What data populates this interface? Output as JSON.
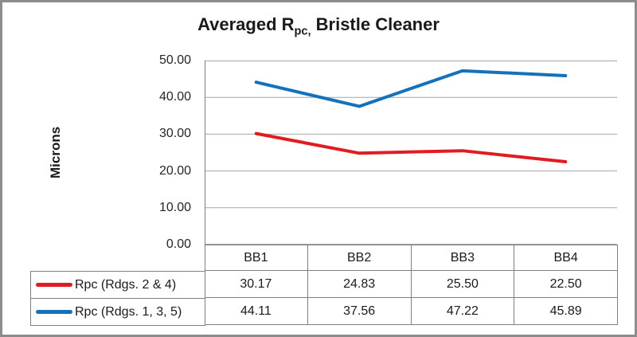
{
  "frame": {
    "background": "#ffffff",
    "border_color": "#8c8c8c"
  },
  "chart_data": {
    "type": "line",
    "title": {
      "prefix": "Averaged R",
      "subscript": "pc,",
      "suffix": " Bristle Cleaner",
      "full_text": "Averaged Rpc, Bristle Cleaner"
    },
    "xlabel": "",
    "ylabel": "Microns",
    "ylim": [
      0,
      50
    ],
    "ytick_interval": 10,
    "ytick_labels": [
      "50.00",
      "40.00",
      "30.00",
      "20.00",
      "10.00",
      "0.00"
    ],
    "categories": [
      "BB1",
      "BB2",
      "BB3",
      "BB4"
    ],
    "series": [
      {
        "name": "Rpc (Rdgs. 2 & 4)",
        "color": "#e01b22",
        "values": [
          30.17,
          24.83,
          25.5,
          22.5
        ],
        "labels": [
          "30.17",
          "24.83",
          "25.50",
          "22.50"
        ]
      },
      {
        "name": "Rpc (Rdgs. 1, 3, 5)",
        "color": "#1572ba",
        "values": [
          44.11,
          37.56,
          47.22,
          45.89
        ],
        "labels": [
          "44.11",
          "37.56",
          "47.22",
          "45.89"
        ]
      }
    ],
    "grid": true,
    "gridline_color": "#a6a6a6",
    "axis_color": "#7f7f7f",
    "legend_position": "data-table-left"
  }
}
